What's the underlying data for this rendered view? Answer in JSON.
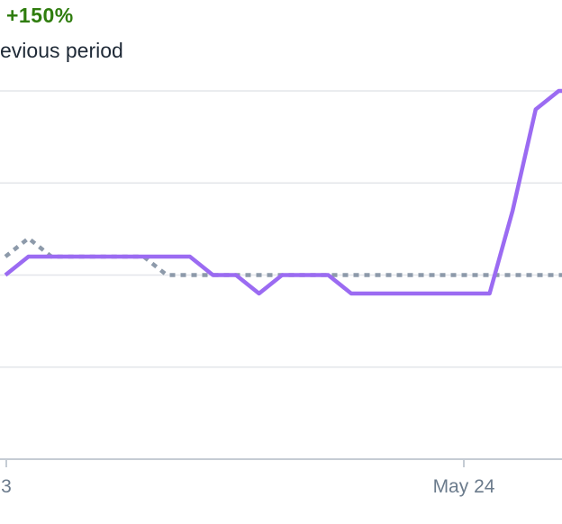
{
  "header": {
    "change": "+150%",
    "subtitle": "evious period"
  },
  "colors": {
    "current": "#9b6bf2",
    "previous": "#8d9aaa",
    "grid": "#e3e6ea",
    "axis": "#c5ccd4",
    "positive": "#2f7d0e"
  },
  "chart_data": {
    "type": "line",
    "x_ticks": [
      "3",
      "May 24"
    ],
    "ylim": [
      0,
      4
    ],
    "grid": true,
    "series": [
      {
        "style": "solid",
        "values": [
          2,
          2.2,
          2.2,
          2.2,
          2.2,
          2.2,
          2.2,
          2.2,
          2.2,
          2,
          2,
          1.8,
          2,
          2,
          2,
          1.8,
          1.8,
          1.8,
          1.8,
          1.8,
          1.8,
          1.8,
          2.7,
          3.8,
          4,
          4
        ]
      },
      {
        "style": "dashed",
        "values": [
          2.2,
          2.4,
          2.2,
          2.2,
          2.2,
          2.2,
          2.2,
          2,
          2,
          2,
          2,
          2,
          2,
          2,
          2,
          2,
          2,
          2,
          2,
          2,
          2,
          2,
          2,
          2,
          2,
          2
        ]
      }
    ]
  }
}
